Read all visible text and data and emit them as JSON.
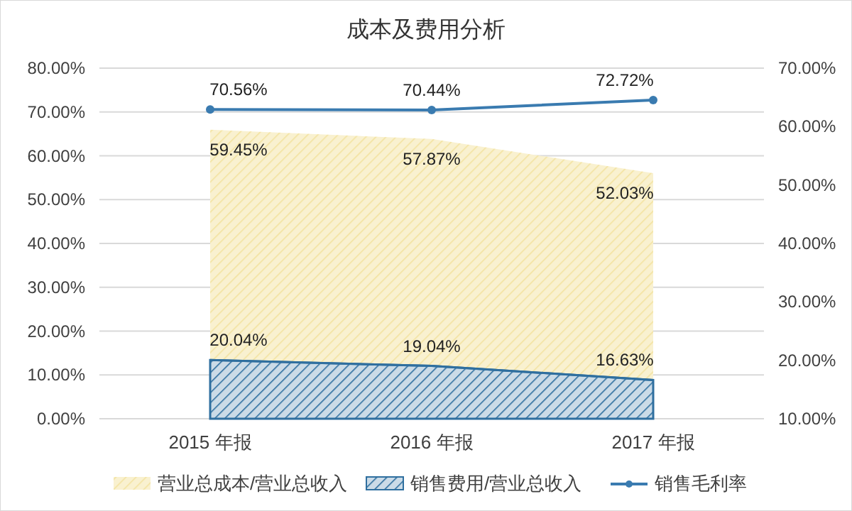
{
  "chart_data": {
    "type": "area",
    "title": "成本及费用分析",
    "categories": [
      "2015 年报",
      "2016 年报",
      "2017 年报"
    ],
    "series": [
      {
        "name": "营业总成本/营业总收入",
        "axis": "y2",
        "color": "#f3e3a0",
        "values": [
          59.45,
          57.87,
          52.03
        ]
      },
      {
        "name": "销售费用/营业总收入",
        "axis": "y2",
        "color": "#2f6f9f",
        "values": [
          20.04,
          19.04,
          16.63
        ]
      },
      {
        "name": "销售毛利率",
        "type": "line",
        "axis": "y",
        "color": "#3a7bb0",
        "marker": "circle",
        "values": [
          70.56,
          70.44,
          72.72
        ]
      }
    ],
    "ylim": [
      0,
      80
    ],
    "yticks": [
      {
        "value": 0,
        "label": "0.00%"
      },
      {
        "value": 10,
        "label": "10.00%"
      },
      {
        "value": 20,
        "label": "20.00%"
      },
      {
        "value": 30,
        "label": "30.00%"
      },
      {
        "value": 40,
        "label": "40.00%"
      },
      {
        "value": 50,
        "label": "50.00%"
      },
      {
        "value": 60,
        "label": "60.00%"
      },
      {
        "value": 70,
        "label": "70.00%"
      },
      {
        "value": 80,
        "label": "80.00%"
      }
    ],
    "y2lim": [
      10,
      70
    ],
    "y2ticks": [
      {
        "value": 10,
        "label": "10.00%"
      },
      {
        "value": 20,
        "label": "20.00%"
      },
      {
        "value": 30,
        "label": "30.00%"
      },
      {
        "value": 40,
        "label": "40.00%"
      },
      {
        "value": 50,
        "label": "50.00%"
      },
      {
        "value": 60,
        "label": "60.00%"
      },
      {
        "value": 70,
        "label": "70.00%"
      }
    ],
    "value_labels": [
      [
        "59.45%",
        "57.87%",
        "52.03%"
      ],
      [
        "20.04%",
        "19.04%",
        "16.63%"
      ],
      [
        "70.56%",
        "70.44%",
        "72.72%"
      ]
    ],
    "grid": "y",
    "legend": "bottom"
  }
}
